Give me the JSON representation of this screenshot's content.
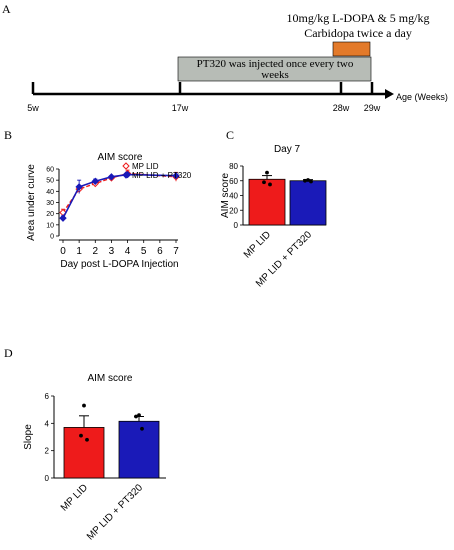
{
  "colors": {
    "mp_lid": "#ee1b1b",
    "mp_lid_pt320": "#1a1ab8",
    "bar_pt320_fill": "#1a1ab8",
    "timeline_box": "#b7bcb6",
    "ldopa_bar": "#e37a2a",
    "axis": "#000000"
  },
  "panelA": {
    "letter": "A",
    "treatment_label_line1": "10mg/kg L-DOPA & 5 mg/kg",
    "treatment_label_line2": "Carbidopa twice a day",
    "pt320_label_line1": "PT320 was injected once every two",
    "pt320_label_line2": "weeks",
    "axis_title": "Age (Weeks)",
    "ticks": [
      {
        "label": "5w",
        "week": 5
      },
      {
        "label": "17w",
        "week": 17
      },
      {
        "label": "28w",
        "week": 28
      },
      {
        "label": "29w",
        "week": 29
      }
    ]
  },
  "panelB": {
    "letter": "B"
  },
  "panelC": {
    "letter": "C"
  },
  "panelD": {
    "letter": "D"
  },
  "chart_data": [
    {
      "id": "B",
      "type": "line",
      "title": "AIM score",
      "xlabel": "Day post L-DOPA Injection",
      "ylabel": "Area under curve",
      "x": [
        0,
        1,
        2,
        3,
        4,
        5,
        6,
        7
      ],
      "xticks": [
        "0",
        "1",
        "2",
        "3",
        "4",
        "5",
        "6",
        "7"
      ],
      "yticks": [
        "0",
        "10",
        "20",
        "30",
        "40",
        "50",
        "60"
      ],
      "ylim": [
        0,
        60
      ],
      "xlim": [
        0,
        7
      ],
      "legend": "top-right",
      "series": [
        {
          "name": "MP LID",
          "marker": "open-diamond",
          "line": "dashed",
          "x": [
            0,
            1,
            2,
            3,
            4,
            7
          ],
          "values": [
            21,
            42,
            47,
            52,
            56,
            53
          ],
          "errors": [
            3,
            3,
            2,
            2,
            3,
            4
          ]
        },
        {
          "name": "MP LID + PT320",
          "marker": "filled-diamond",
          "line": "solid",
          "x": [
            0,
            1,
            2,
            3,
            4,
            7
          ],
          "values": [
            16,
            44,
            49,
            53,
            55,
            54
          ],
          "errors": [
            2,
            6,
            2,
            1,
            1,
            1
          ]
        }
      ]
    },
    {
      "id": "C",
      "type": "bar",
      "title": "Day 7",
      "ylabel": "AIM score",
      "categories": [
        "MP LID",
        "MP LID + PT320"
      ],
      "values": [
        62,
        60
      ],
      "errors": [
        5,
        1.5
      ],
      "points": [
        [
          71,
          58,
          55
        ],
        [
          61,
          60,
          59
        ]
      ],
      "yticks": [
        "0",
        "20",
        "40",
        "60",
        "80"
      ],
      "ylim": [
        0,
        80
      ]
    },
    {
      "id": "D",
      "type": "bar",
      "title": "AIM score",
      "ylabel": "Slope",
      "categories": [
        "MP LID",
        "MP LID + PT320"
      ],
      "values": [
        3.7,
        4.15
      ],
      "errors": [
        0.85,
        0.35
      ],
      "points": [
        [
          5.3,
          3.1,
          2.8
        ],
        [
          4.6,
          4.5,
          3.6
        ]
      ],
      "yticks": [
        "0",
        "2",
        "4",
        "6"
      ],
      "ylim": [
        0,
        6
      ]
    }
  ]
}
